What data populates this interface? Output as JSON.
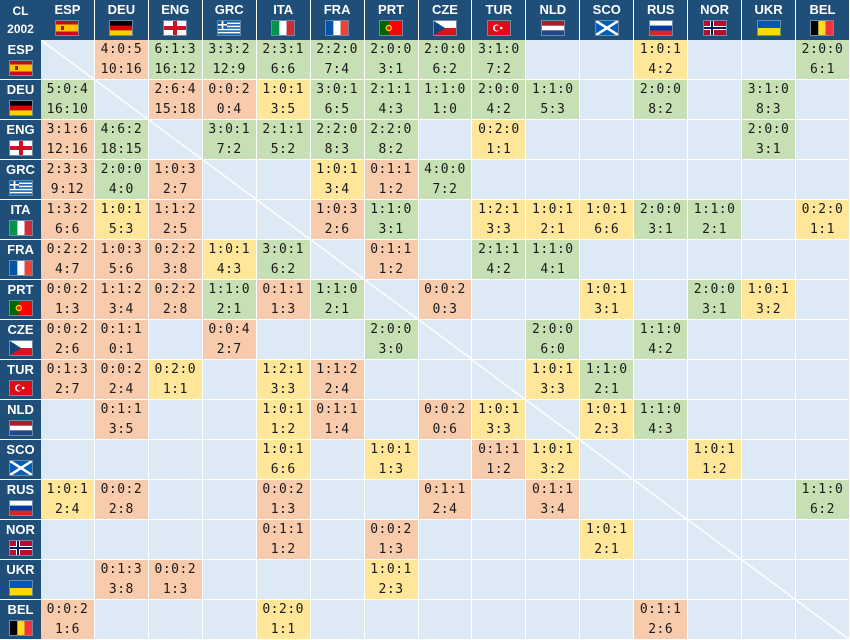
{
  "corner": {
    "line1": "CL",
    "line2": "2002"
  },
  "colors": {
    "win": "#c6e0b4",
    "draw": "#ffe699",
    "loss": "#f8cbad",
    "empty": "#dde9f5",
    "header": "#1f4e79"
  },
  "teams": [
    {
      "code": "ESP",
      "flag": "esp-flag"
    },
    {
      "code": "DEU",
      "flag": "deu-flag"
    },
    {
      "code": "ENG",
      "flag": "eng-flag"
    },
    {
      "code": "GRC",
      "flag": "grc-flag"
    },
    {
      "code": "ITA",
      "flag": "ita-flag"
    },
    {
      "code": "FRA",
      "flag": "fra-flag"
    },
    {
      "code": "PRT",
      "flag": "prt-flag"
    },
    {
      "code": "CZE",
      "flag": "cze-flag"
    },
    {
      "code": "TUR",
      "flag": "tur-flag"
    },
    {
      "code": "NLD",
      "flag": "nld-flag"
    },
    {
      "code": "SCO",
      "flag": "sco-flag"
    },
    {
      "code": "RUS",
      "flag": "rus-flag"
    },
    {
      "code": "NOR",
      "flag": "nor-flag"
    },
    {
      "code": "UKR",
      "flag": "ukr-flag"
    },
    {
      "code": "BEL",
      "flag": "bel-flag"
    }
  ],
  "matrix": [
    [
      null,
      {
        "r": "4:0:5",
        "g": "10:16"
      },
      {
        "r": "6:1:3",
        "g": "16:12"
      },
      {
        "r": "3:3:2",
        "g": "12:9"
      },
      {
        "r": "2:3:1",
        "g": "6:6"
      },
      {
        "r": "2:2:0",
        "g": "7:4"
      },
      {
        "r": "2:0:0",
        "g": "3:1"
      },
      {
        "r": "2:0:0",
        "g": "6:2"
      },
      {
        "r": "3:1:0",
        "g": "7:2"
      },
      "",
      "",
      {
        "r": "1:0:1",
        "g": "4:2"
      },
      "",
      "",
      {
        "r": "2:0:0",
        "g": "6:1"
      }
    ],
    [
      {
        "r": "5:0:4",
        "g": "16:10"
      },
      null,
      {
        "r": "2:6:4",
        "g": "15:18"
      },
      {
        "r": "0:0:2",
        "g": "0:4"
      },
      {
        "r": "1:0:1",
        "g": "3:5"
      },
      {
        "r": "3:0:1",
        "g": "6:5"
      },
      {
        "r": "2:1:1",
        "g": "4:3"
      },
      {
        "r": "1:1:0",
        "g": "1:0"
      },
      {
        "r": "2:0:0",
        "g": "4:2"
      },
      {
        "r": "1:1:0",
        "g": "5:3"
      },
      "",
      {
        "r": "2:0:0",
        "g": "8:2"
      },
      "",
      {
        "r": "3:1:0",
        "g": "8:3"
      },
      ""
    ],
    [
      {
        "r": "3:1:6",
        "g": "12:16"
      },
      {
        "r": "4:6:2",
        "g": "18:15"
      },
      null,
      {
        "r": "3:0:1",
        "g": "7:2"
      },
      {
        "r": "2:1:1",
        "g": "5:2"
      },
      {
        "r": "2:2:0",
        "g": "8:3"
      },
      {
        "r": "2:2:0",
        "g": "8:2"
      },
      "",
      {
        "r": "0:2:0",
        "g": "1:1"
      },
      "",
      "",
      "",
      "",
      {
        "r": "2:0:0",
        "g": "3:1"
      },
      ""
    ],
    [
      {
        "r": "2:3:3",
        "g": "9:12"
      },
      {
        "r": "2:0:0",
        "g": "4:0"
      },
      {
        "r": "1:0:3",
        "g": "2:7"
      },
      null,
      "",
      {
        "r": "1:0:1",
        "g": "3:4"
      },
      {
        "r": "0:1:1",
        "g": "1:2"
      },
      {
        "r": "4:0:0",
        "g": "7:2"
      },
      "",
      "",
      "",
      "",
      "",
      "",
      ""
    ],
    [
      {
        "r": "1:3:2",
        "g": "6:6"
      },
      {
        "r": "1:0:1",
        "g": "5:3"
      },
      {
        "r": "1:1:2",
        "g": "2:5"
      },
      "",
      null,
      {
        "r": "1:0:3",
        "g": "2:6"
      },
      {
        "r": "1:1:0",
        "g": "3:1"
      },
      "",
      {
        "r": "1:2:1",
        "g": "3:3"
      },
      {
        "r": "1:0:1",
        "g": "2:1"
      },
      {
        "r": "1:0:1",
        "g": "6:6"
      },
      {
        "r": "2:0:0",
        "g": "3:1"
      },
      {
        "r": "1:1:0",
        "g": "2:1"
      },
      "",
      {
        "r": "0:2:0",
        "g": "1:1"
      }
    ],
    [
      {
        "r": "0:2:2",
        "g": "4:7"
      },
      {
        "r": "1:0:3",
        "g": "5:6"
      },
      {
        "r": "0:2:2",
        "g": "3:8"
      },
      {
        "r": "1:0:1",
        "g": "4:3"
      },
      {
        "r": "3:0:1",
        "g": "6:2"
      },
      null,
      {
        "r": "0:1:1",
        "g": "1:2"
      },
      "",
      {
        "r": "2:1:1",
        "g": "4:2"
      },
      {
        "r": "1:1:0",
        "g": "4:1"
      },
      "",
      "",
      "",
      "",
      ""
    ],
    [
      {
        "r": "0:0:2",
        "g": "1:3"
      },
      {
        "r": "1:1:2",
        "g": "3:4"
      },
      {
        "r": "0:2:2",
        "g": "2:8"
      },
      {
        "r": "1:1:0",
        "g": "2:1"
      },
      {
        "r": "0:1:1",
        "g": "1:3"
      },
      {
        "r": "1:1:0",
        "g": "2:1"
      },
      null,
      {
        "r": "0:0:2",
        "g": "0:3"
      },
      "",
      "",
      {
        "r": "1:0:1",
        "g": "3:1"
      },
      "",
      {
        "r": "2:0:0",
        "g": "3:1"
      },
      {
        "r": "1:0:1",
        "g": "3:2"
      },
      ""
    ],
    [
      {
        "r": "0:0:2",
        "g": "2:6"
      },
      {
        "r": "0:1:1",
        "g": "0:1"
      },
      "",
      {
        "r": "0:0:4",
        "g": "2:7"
      },
      "",
      "",
      {
        "r": "2:0:0",
        "g": "3:0"
      },
      null,
      "",
      {
        "r": "2:0:0",
        "g": "6:0"
      },
      "",
      {
        "r": "1:1:0",
        "g": "4:2"
      },
      "",
      "",
      ""
    ],
    [
      {
        "r": "0:1:3",
        "g": "2:7"
      },
      {
        "r": "0:0:2",
        "g": "2:4"
      },
      {
        "r": "0:2:0",
        "g": "1:1"
      },
      "",
      {
        "r": "1:2:1",
        "g": "3:3"
      },
      {
        "r": "1:1:2",
        "g": "2:4"
      },
      "",
      "",
      null,
      {
        "r": "1:0:1",
        "g": "3:3"
      },
      {
        "r": "1:1:0",
        "g": "2:1"
      },
      "",
      "",
      "",
      ""
    ],
    [
      "",
      {
        "r": "0:1:1",
        "g": "3:5"
      },
      "",
      "",
      {
        "r": "1:0:1",
        "g": "1:2"
      },
      {
        "r": "0:1:1",
        "g": "1:4"
      },
      "",
      {
        "r": "0:0:2",
        "g": "0:6"
      },
      {
        "r": "1:0:1",
        "g": "3:3"
      },
      null,
      {
        "r": "1:0:1",
        "g": "2:3"
      },
      {
        "r": "1:1:0",
        "g": "4:3"
      },
      "",
      "",
      ""
    ],
    [
      "",
      "",
      "",
      "",
      {
        "r": "1:0:1",
        "g": "6:6"
      },
      "",
      {
        "r": "1:0:1",
        "g": "1:3"
      },
      "",
      {
        "r": "0:1:1",
        "g": "1:2"
      },
      {
        "r": "1:0:1",
        "g": "3:2"
      },
      null,
      "",
      {
        "r": "1:0:1",
        "g": "1:2"
      },
      "",
      ""
    ],
    [
      {
        "r": "1:0:1",
        "g": "2:4"
      },
      {
        "r": "0:0:2",
        "g": "2:8"
      },
      "",
      "",
      {
        "r": "0:0:2",
        "g": "1:3"
      },
      "",
      "",
      {
        "r": "0:1:1",
        "g": "2:4"
      },
      "",
      {
        "r": "0:1:1",
        "g": "3:4"
      },
      "",
      null,
      "",
      "",
      {
        "r": "1:1:0",
        "g": "6:2"
      }
    ],
    [
      "",
      "",
      "",
      "",
      {
        "r": "0:1:1",
        "g": "1:2"
      },
      "",
      {
        "r": "0:0:2",
        "g": "1:3"
      },
      "",
      "",
      "",
      {
        "r": "1:0:1",
        "g": "2:1"
      },
      "",
      null,
      "",
      ""
    ],
    [
      "",
      {
        "r": "0:1:3",
        "g": "3:8"
      },
      {
        "r": "0:0:2",
        "g": "1:3"
      },
      "",
      "",
      "",
      {
        "r": "1:0:1",
        "g": "2:3"
      },
      "",
      "",
      "",
      "",
      "",
      "",
      null,
      ""
    ],
    [
      {
        "r": "0:0:2",
        "g": "1:6"
      },
      "",
      "",
      "",
      {
        "r": "0:2:0",
        "g": "1:1"
      },
      "",
      "",
      "",
      "",
      "",
      "",
      {
        "r": "0:1:1",
        "g": "2:6"
      },
      "",
      "",
      null
    ]
  ]
}
